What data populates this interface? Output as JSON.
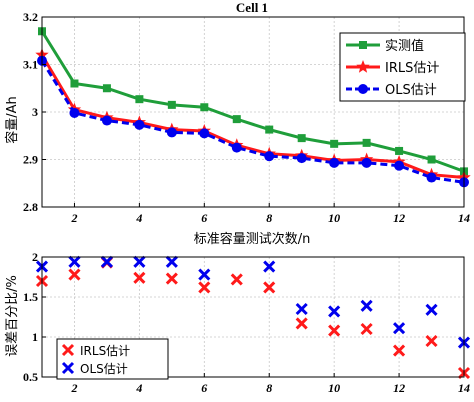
{
  "chart_data": [
    {
      "type": "line",
      "title": "Cell 1",
      "xlabel": "标准容量测试次数/n",
      "ylabel": "容量/Ah",
      "xlim": [
        1,
        14
      ],
      "ylim": [
        2.8,
        3.2
      ],
      "xticks": [
        2,
        4,
        6,
        8,
        10,
        12,
        14
      ],
      "xtick_labels": [
        "2",
        "4",
        "6",
        "8",
        "10",
        "12",
        "14"
      ],
      "yticks": [
        2.8,
        2.9,
        3.0,
        3.1,
        3.2
      ],
      "ytick_labels": [
        "2.8",
        "2.9",
        "3",
        "3.1",
        "3.2"
      ],
      "grid": true,
      "legend_position": "top-right",
      "x": [
        1,
        2,
        3,
        4,
        5,
        6,
        7,
        8,
        9,
        10,
        11,
        12,
        13,
        14
      ],
      "series": [
        {
          "name": "实测值",
          "color": "#1f9e3a",
          "marker": "square",
          "line": "solid",
          "values": [
            3.17,
            3.06,
            3.05,
            3.027,
            3.015,
            3.01,
            2.985,
            2.963,
            2.945,
            2.933,
            2.935,
            2.918,
            2.9,
            2.875
          ]
        },
        {
          "name": "IRLS估计",
          "color": "#ff1a1a",
          "marker": "star",
          "line": "solid",
          "values": [
            3.12,
            3.005,
            2.988,
            2.978,
            2.963,
            2.96,
            2.93,
            2.912,
            2.908,
            2.898,
            2.9,
            2.895,
            2.868,
            2.862
          ]
        },
        {
          "name": "OLS估计",
          "color": "#0000ee",
          "marker": "circle",
          "line": "dashed",
          "values": [
            3.108,
            2.998,
            2.982,
            2.973,
            2.957,
            2.955,
            2.925,
            2.907,
            2.903,
            2.893,
            2.893,
            2.887,
            2.862,
            2.852
          ]
        }
      ]
    },
    {
      "type": "scatter",
      "ylabel": "误差百分比/%",
      "xlim": [
        1,
        14
      ],
      "ylim": [
        0.5,
        2
      ],
      "xticks": [
        2,
        4,
        6,
        8,
        10,
        12,
        14
      ],
      "xtick_labels": [
        "2",
        "4",
        "6",
        "8",
        "10",
        "12",
        "14"
      ],
      "yticks": [
        0.5,
        1,
        1.5,
        2
      ],
      "ytick_labels": [
        "0.5",
        "1",
        "1.5",
        "2"
      ],
      "grid": true,
      "legend_position": "bottom-left",
      "x": [
        1,
        2,
        3,
        4,
        5,
        6,
        7,
        8,
        9,
        10,
        11,
        12,
        13,
        14
      ],
      "series": [
        {
          "name": "IRLS估计",
          "color": "#ff1a1a",
          "marker": "x",
          "values": [
            1.7,
            1.78,
            1.93,
            1.74,
            1.73,
            1.62,
            1.72,
            1.62,
            1.17,
            1.08,
            1.1,
            0.83,
            0.95,
            0.55
          ]
        },
        {
          "name": "OLS估计",
          "color": "#0000ee",
          "marker": "x",
          "values": [
            1.88,
            1.94,
            1.94,
            1.94,
            1.94,
            1.78,
            null,
            1.88,
            1.35,
            1.32,
            1.39,
            1.11,
            1.34,
            0.93
          ]
        }
      ]
    }
  ]
}
